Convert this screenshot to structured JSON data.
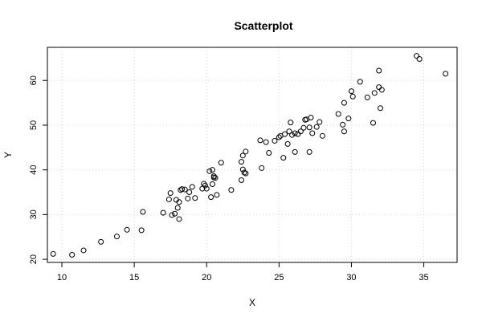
{
  "chart_data": {
    "type": "scatter",
    "title": "Scatterplot",
    "xlabel": "X",
    "ylabel": "Y",
    "xlim": [
      9,
      37.3
    ],
    "ylim": [
      19.3,
      67.4
    ],
    "xticks": [
      10,
      15,
      20,
      25,
      30,
      35
    ],
    "yticks": [
      20,
      30,
      40,
      50,
      60
    ],
    "grid": true,
    "point_color": "#000000",
    "grid_color": "#d3d3d3",
    "points": [
      [
        9.4,
        21.2
      ],
      [
        10.7,
        21.0
      ],
      [
        11.5,
        22.0
      ],
      [
        12.7,
        23.9
      ],
      [
        13.8,
        25.1
      ],
      [
        14.5,
        26.6
      ],
      [
        15.5,
        26.5
      ],
      [
        15.6,
        30.6
      ],
      [
        17.0,
        30.4
      ],
      [
        17.4,
        33.4
      ],
      [
        17.5,
        34.8
      ],
      [
        17.6,
        29.9
      ],
      [
        17.8,
        30.2
      ],
      [
        17.9,
        33.3
      ],
      [
        18.0,
        31.5
      ],
      [
        18.1,
        29.0
      ],
      [
        18.1,
        32.8
      ],
      [
        18.2,
        35.5
      ],
      [
        18.3,
        35.7
      ],
      [
        18.5,
        35.6
      ],
      [
        18.7,
        33.6
      ],
      [
        18.8,
        35.0
      ],
      [
        19.0,
        36.2
      ],
      [
        19.2,
        33.7
      ],
      [
        19.7,
        35.8
      ],
      [
        19.8,
        36.9
      ],
      [
        19.9,
        36.5
      ],
      [
        20.0,
        35.8
      ],
      [
        20.2,
        39.7
      ],
      [
        20.3,
        33.9
      ],
      [
        20.4,
        36.8
      ],
      [
        20.4,
        40.0
      ],
      [
        20.5,
        38.3
      ],
      [
        20.5,
        38.6
      ],
      [
        20.6,
        38.2
      ],
      [
        20.7,
        34.4
      ],
      [
        21.0,
        41.6
      ],
      [
        21.7,
        35.5
      ],
      [
        22.4,
        37.7
      ],
      [
        22.4,
        41.8
      ],
      [
        22.5,
        40.1
      ],
      [
        22.5,
        43.2
      ],
      [
        22.6,
        39.4
      ],
      [
        22.7,
        39.2
      ],
      [
        22.7,
        44.1
      ],
      [
        23.7,
        46.6
      ],
      [
        23.8,
        40.4
      ],
      [
        24.1,
        46.2
      ],
      [
        24.3,
        43.8
      ],
      [
        24.7,
        46.5
      ],
      [
        25.0,
        47.3
      ],
      [
        25.1,
        47.6
      ],
      [
        25.3,
        42.7
      ],
      [
        25.4,
        48.0
      ],
      [
        25.6,
        45.8
      ],
      [
        25.7,
        48.6
      ],
      [
        25.8,
        50.6
      ],
      [
        25.9,
        47.8
      ],
      [
        26.1,
        48.2
      ],
      [
        26.1,
        44.0
      ],
      [
        26.3,
        48.0
      ],
      [
        26.5,
        48.6
      ],
      [
        26.7,
        49.4
      ],
      [
        26.8,
        51.2
      ],
      [
        26.9,
        51.3
      ],
      [
        27.1,
        44.0
      ],
      [
        27.1,
        49.5
      ],
      [
        27.2,
        51.7
      ],
      [
        27.3,
        48.2
      ],
      [
        27.6,
        49.6
      ],
      [
        27.8,
        50.7
      ],
      [
        28.0,
        47.6
      ],
      [
        29.1,
        52.5
      ],
      [
        29.4,
        50.1
      ],
      [
        29.5,
        48.6
      ],
      [
        29.5,
        55.0
      ],
      [
        29.8,
        51.5
      ],
      [
        30.0,
        57.6
      ],
      [
        30.1,
        56.4
      ],
      [
        30.6,
        59.7
      ],
      [
        31.1,
        56.2
      ],
      [
        31.5,
        50.5
      ],
      [
        31.6,
        57.2
      ],
      [
        31.9,
        62.2
      ],
      [
        31.9,
        58.5
      ],
      [
        32.0,
        53.8
      ],
      [
        32.1,
        57.9
      ],
      [
        34.5,
        65.5
      ],
      [
        34.7,
        64.8
      ],
      [
        36.5,
        61.5
      ]
    ]
  }
}
